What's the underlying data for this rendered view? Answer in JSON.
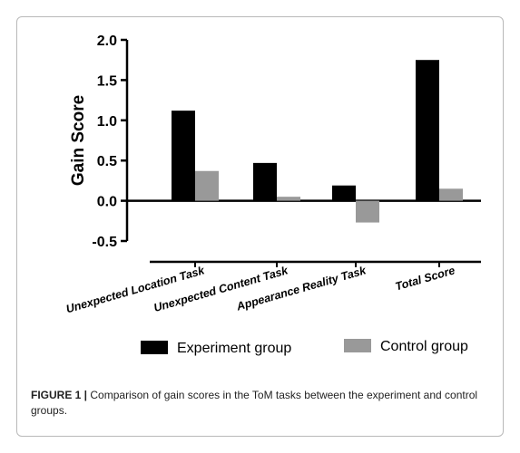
{
  "chart_data": {
    "type": "bar",
    "ylabel": "Gain Score",
    "ylim": [
      -0.5,
      2.0
    ],
    "yticks": [
      "2.0",
      "1.5",
      "1.0",
      "0.5",
      "0.0",
      "-0.5"
    ],
    "ytick_values": [
      2.0,
      1.5,
      1.0,
      0.5,
      0.0,
      -0.5
    ],
    "categories": [
      "Unexpected Location Task",
      "Unexpected Content Task",
      "Appearance Reality Task",
      "Total Score"
    ],
    "series": [
      {
        "name": "Experiment group",
        "color": "#000000",
        "values": [
          1.12,
          0.47,
          0.19,
          1.75
        ]
      },
      {
        "name": "Control group",
        "color": "#999999",
        "values": [
          0.37,
          0.05,
          -0.27,
          0.15
        ]
      }
    ],
    "legend_position": "bottom",
    "grid": false
  },
  "caption": {
    "label": "FIGURE 1 |",
    "text": " Comparison of gain scores in the ToM tasks between the experiment and control groups."
  }
}
